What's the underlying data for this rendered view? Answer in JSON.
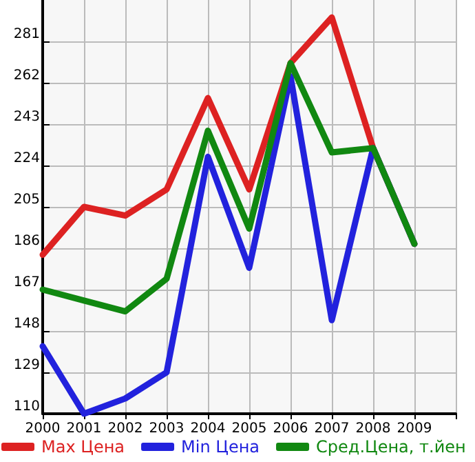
{
  "chart_data": {
    "type": "line",
    "x": [
      2000,
      2001,
      2002,
      2003,
      2004,
      2005,
      2006,
      2007,
      2008,
      2009
    ],
    "series": [
      {
        "name": "Max Цена",
        "color": "#dd2222",
        "values": [
          183,
          205,
          201,
          213,
          255,
          213,
          271,
          292,
          232,
          188
        ]
      },
      {
        "name": "Min Цена",
        "color": "#2222dd",
        "values": [
          141,
          110,
          117,
          129,
          228,
          177,
          265,
          153,
          232,
          188
        ]
      },
      {
        "name": "Сред.Цена, т.йен",
        "color": "#118811",
        "values": [
          167,
          162,
          157,
          172,
          240,
          195,
          271,
          230,
          232,
          188
        ]
      }
    ],
    "xlim": [
      2000,
      2010
    ],
    "xticks": [
      2000,
      2001,
      2002,
      2003,
      2004,
      2005,
      2006,
      2007,
      2008,
      2009,
      {
        "value": 2010,
        "label": null
      }
    ],
    "ylim": [
      110,
      300
    ],
    "yticks": [
      110,
      129,
      148,
      167,
      186,
      205,
      224,
      243,
      262,
      281
    ],
    "grid": true,
    "legend": "bottom",
    "marker": "none",
    "line_style": "solid"
  }
}
